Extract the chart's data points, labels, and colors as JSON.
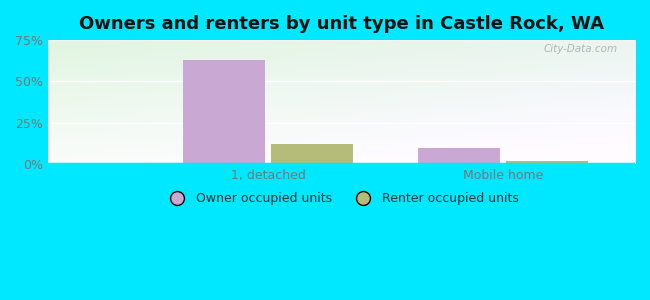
{
  "title": "Owners and renters by unit type in Castle Rock, WA",
  "categories": [
    "1, detached",
    "Mobile home"
  ],
  "owner_values": [
    63.0,
    10.0
  ],
  "renter_values": [
    12.0,
    2.0
  ],
  "owner_color": "#c9a8d4",
  "renter_color": "#b5bb78",
  "ylim": [
    0,
    75
  ],
  "yticks": [
    0,
    25,
    50,
    75
  ],
  "ytick_labels": [
    "0%",
    "25%",
    "50%",
    "75%"
  ],
  "background_outer": "#00e8ff",
  "legend_owner": "Owner occupied units",
  "legend_renter": "Renter occupied units",
  "bar_width": 0.28,
  "watermark": "City-Data.com",
  "title_fontsize": 13,
  "tick_fontsize": 9,
  "legend_fontsize": 9
}
